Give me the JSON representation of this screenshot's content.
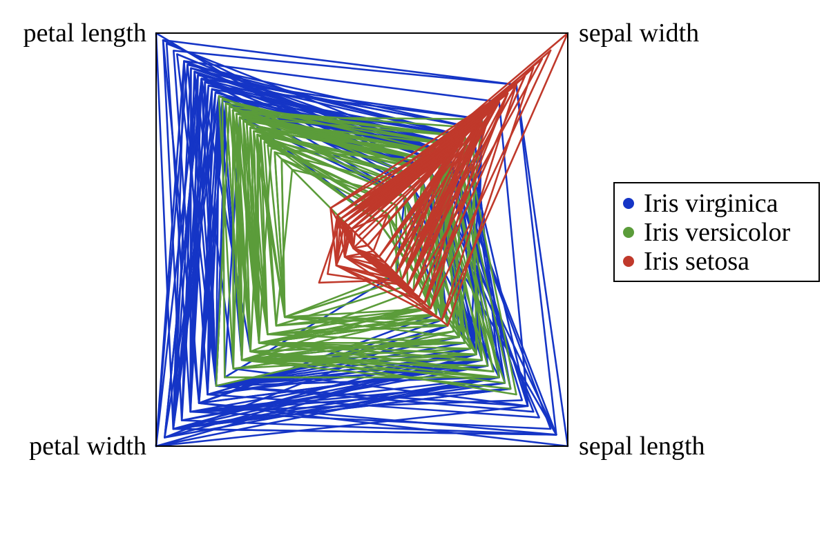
{
  "chart_data": {
    "type": "radviz",
    "anchors": [
      {
        "id": "petal_length",
        "label": "petal length",
        "position": "top-left"
      },
      {
        "id": "sepal_width",
        "label": "sepal width",
        "position": "top-right"
      },
      {
        "id": "sepal_length",
        "label": "sepal length",
        "position": "bottom-right"
      },
      {
        "id": "petal_width",
        "label": "petal width",
        "position": "bottom-left"
      }
    ],
    "legend_position": "right",
    "grid": false,
    "series": [
      {
        "name": "Iris virginica",
        "color": "#1535c6",
        "points": [
          [
            6.3,
            3.3,
            6.0,
            2.5
          ],
          [
            5.8,
            2.7,
            5.1,
            1.9
          ],
          [
            7.1,
            3.0,
            5.9,
            2.1
          ],
          [
            6.3,
            2.9,
            5.6,
            1.8
          ],
          [
            6.5,
            3.0,
            5.8,
            2.2
          ],
          [
            7.6,
            3.0,
            6.6,
            2.1
          ],
          [
            4.9,
            2.5,
            4.5,
            1.7
          ],
          [
            7.3,
            2.9,
            6.3,
            1.8
          ],
          [
            6.7,
            2.5,
            5.8,
            1.8
          ],
          [
            7.2,
            3.6,
            6.1,
            2.5
          ],
          [
            6.5,
            3.2,
            5.1,
            2.0
          ],
          [
            6.4,
            2.7,
            5.3,
            1.9
          ],
          [
            6.8,
            3.0,
            5.5,
            2.1
          ],
          [
            5.7,
            2.5,
            5.0,
            2.0
          ],
          [
            5.8,
            2.8,
            5.1,
            2.4
          ],
          [
            6.4,
            3.2,
            5.3,
            2.3
          ],
          [
            6.5,
            3.0,
            5.5,
            1.8
          ],
          [
            7.7,
            3.8,
            6.7,
            2.2
          ],
          [
            7.7,
            2.6,
            6.9,
            2.3
          ],
          [
            6.0,
            2.2,
            5.0,
            1.5
          ],
          [
            6.9,
            3.2,
            5.7,
            2.3
          ],
          [
            5.6,
            2.8,
            4.9,
            2.0
          ],
          [
            7.7,
            2.8,
            6.7,
            2.0
          ],
          [
            6.3,
            2.7,
            4.9,
            1.8
          ],
          [
            6.7,
            3.3,
            5.7,
            2.1
          ],
          [
            7.2,
            3.2,
            6.0,
            1.8
          ],
          [
            6.2,
            2.8,
            4.8,
            1.8
          ],
          [
            6.1,
            3.0,
            4.9,
            1.8
          ],
          [
            6.4,
            2.8,
            5.6,
            2.1
          ],
          [
            7.2,
            3.0,
            5.8,
            1.6
          ],
          [
            7.4,
            2.8,
            6.1,
            1.9
          ],
          [
            7.9,
            3.8,
            6.4,
            2.0
          ],
          [
            6.4,
            2.8,
            5.6,
            2.2
          ],
          [
            6.3,
            2.8,
            5.1,
            1.5
          ],
          [
            6.1,
            2.6,
            5.6,
            1.4
          ],
          [
            7.7,
            3.0,
            6.1,
            2.3
          ],
          [
            6.3,
            3.4,
            5.6,
            2.4
          ],
          [
            6.4,
            3.1,
            5.5,
            1.8
          ],
          [
            6.0,
            3.0,
            4.8,
            1.8
          ],
          [
            6.9,
            3.1,
            5.4,
            2.1
          ],
          [
            6.7,
            3.1,
            5.6,
            2.4
          ],
          [
            6.9,
            3.1,
            5.1,
            2.3
          ],
          [
            5.8,
            2.7,
            5.1,
            1.9
          ],
          [
            6.8,
            3.2,
            5.9,
            2.3
          ],
          [
            6.7,
            3.3,
            5.7,
            2.5
          ],
          [
            6.7,
            3.0,
            5.2,
            2.3
          ],
          [
            6.3,
            2.5,
            5.0,
            1.9
          ],
          [
            6.5,
            3.0,
            5.2,
            2.0
          ],
          [
            6.2,
            3.4,
            5.4,
            2.3
          ],
          [
            5.9,
            3.0,
            5.1,
            1.8
          ]
        ]
      },
      {
        "name": "Iris versicolor",
        "color": "#5b9c3a",
        "points": [
          [
            7.0,
            3.2,
            4.7,
            1.4
          ],
          [
            6.4,
            3.2,
            4.5,
            1.5
          ],
          [
            6.9,
            3.1,
            4.9,
            1.5
          ],
          [
            5.5,
            2.3,
            4.0,
            1.3
          ],
          [
            6.5,
            2.8,
            4.6,
            1.5
          ],
          [
            5.7,
            2.8,
            4.5,
            1.3
          ],
          [
            6.3,
            3.3,
            4.7,
            1.6
          ],
          [
            4.9,
            2.4,
            3.3,
            1.0
          ],
          [
            6.6,
            2.9,
            4.6,
            1.3
          ],
          [
            5.2,
            2.7,
            3.9,
            1.4
          ],
          [
            5.0,
            2.0,
            3.5,
            1.0
          ],
          [
            5.9,
            3.0,
            4.2,
            1.5
          ],
          [
            6.0,
            2.2,
            4.0,
            1.0
          ],
          [
            6.1,
            2.9,
            4.7,
            1.4
          ],
          [
            5.6,
            2.9,
            3.6,
            1.3
          ],
          [
            6.7,
            3.1,
            4.4,
            1.4
          ],
          [
            5.6,
            3.0,
            4.5,
            1.5
          ],
          [
            5.8,
            2.7,
            4.1,
            1.0
          ],
          [
            6.2,
            2.2,
            4.5,
            1.5
          ],
          [
            5.6,
            2.5,
            3.9,
            1.1
          ],
          [
            5.9,
            3.2,
            4.8,
            1.8
          ],
          [
            6.1,
            2.8,
            4.0,
            1.3
          ],
          [
            6.3,
            2.5,
            4.9,
            1.5
          ],
          [
            6.1,
            2.8,
            4.7,
            1.2
          ],
          [
            6.4,
            2.9,
            4.3,
            1.3
          ],
          [
            6.6,
            3.0,
            4.4,
            1.4
          ],
          [
            6.8,
            2.8,
            4.8,
            1.4
          ],
          [
            6.7,
            3.0,
            5.0,
            1.7
          ],
          [
            6.0,
            2.9,
            4.5,
            1.5
          ],
          [
            5.7,
            2.6,
            3.5,
            1.0
          ],
          [
            5.5,
            2.4,
            3.8,
            1.1
          ],
          [
            5.5,
            2.4,
            3.7,
            1.0
          ],
          [
            5.8,
            2.7,
            3.9,
            1.2
          ],
          [
            6.0,
            2.7,
            5.1,
            1.6
          ],
          [
            5.4,
            3.0,
            4.5,
            1.5
          ],
          [
            6.0,
            3.4,
            4.5,
            1.6
          ],
          [
            6.7,
            3.1,
            4.7,
            1.5
          ],
          [
            6.3,
            2.3,
            4.4,
            1.3
          ],
          [
            5.6,
            3.0,
            4.1,
            1.3
          ],
          [
            5.5,
            2.5,
            4.0,
            1.3
          ],
          [
            5.5,
            2.6,
            4.4,
            1.2
          ],
          [
            6.1,
            3.0,
            4.6,
            1.4
          ],
          [
            5.8,
            2.6,
            4.0,
            1.2
          ],
          [
            5.0,
            2.3,
            3.3,
            1.0
          ],
          [
            5.6,
            2.7,
            4.2,
            1.3
          ],
          [
            5.7,
            3.0,
            4.2,
            1.2
          ],
          [
            5.7,
            2.9,
            4.2,
            1.3
          ],
          [
            6.2,
            2.9,
            4.3,
            1.3
          ],
          [
            5.1,
            2.5,
            3.0,
            1.1
          ],
          [
            5.7,
            2.8,
            4.1,
            1.3
          ]
        ]
      },
      {
        "name": "Iris setosa",
        "color": "#c0392b",
        "points": [
          [
            5.1,
            3.5,
            1.4,
            0.2
          ],
          [
            4.9,
            3.0,
            1.4,
            0.2
          ],
          [
            4.7,
            3.2,
            1.3,
            0.2
          ],
          [
            4.6,
            3.1,
            1.5,
            0.2
          ],
          [
            5.0,
            3.6,
            1.4,
            0.2
          ],
          [
            5.4,
            3.9,
            1.7,
            0.4
          ],
          [
            4.6,
            3.4,
            1.4,
            0.3
          ],
          [
            5.0,
            3.4,
            1.5,
            0.2
          ],
          [
            4.4,
            2.9,
            1.4,
            0.2
          ],
          [
            4.9,
            3.1,
            1.5,
            0.1
          ],
          [
            5.4,
            3.7,
            1.5,
            0.2
          ],
          [
            4.8,
            3.4,
            1.6,
            0.2
          ],
          [
            4.8,
            3.0,
            1.4,
            0.1
          ],
          [
            4.3,
            3.0,
            1.1,
            0.1
          ],
          [
            5.8,
            4.0,
            1.2,
            0.2
          ],
          [
            5.7,
            4.4,
            1.5,
            0.4
          ],
          [
            5.4,
            3.9,
            1.3,
            0.4
          ],
          [
            5.1,
            3.5,
            1.4,
            0.3
          ],
          [
            5.7,
            3.8,
            1.7,
            0.3
          ],
          [
            5.1,
            3.8,
            1.5,
            0.3
          ],
          [
            5.4,
            3.4,
            1.7,
            0.2
          ],
          [
            5.1,
            3.7,
            1.5,
            0.4
          ],
          [
            4.6,
            3.6,
            1.0,
            0.2
          ],
          [
            5.1,
            3.3,
            1.7,
            0.5
          ],
          [
            4.8,
            3.4,
            1.9,
            0.2
          ],
          [
            5.0,
            3.0,
            1.6,
            0.2
          ],
          [
            5.0,
            3.4,
            1.6,
            0.4
          ],
          [
            5.2,
            3.5,
            1.5,
            0.2
          ],
          [
            5.2,
            3.4,
            1.4,
            0.2
          ],
          [
            4.7,
            3.2,
            1.6,
            0.2
          ],
          [
            4.8,
            3.1,
            1.6,
            0.2
          ],
          [
            5.4,
            3.4,
            1.5,
            0.4
          ],
          [
            5.2,
            4.1,
            1.5,
            0.1
          ],
          [
            5.5,
            4.2,
            1.4,
            0.2
          ],
          [
            4.9,
            3.1,
            1.5,
            0.2
          ],
          [
            5.0,
            3.2,
            1.2,
            0.2
          ],
          [
            5.5,
            3.5,
            1.3,
            0.2
          ],
          [
            4.9,
            3.6,
            1.4,
            0.1
          ],
          [
            4.4,
            3.0,
            1.3,
            0.2
          ],
          [
            5.1,
            3.4,
            1.5,
            0.2
          ],
          [
            5.0,
            3.5,
            1.3,
            0.3
          ],
          [
            4.5,
            2.3,
            1.3,
            0.3
          ],
          [
            4.4,
            3.2,
            1.3,
            0.2
          ],
          [
            5.0,
            3.5,
            1.6,
            0.6
          ],
          [
            5.1,
            3.8,
            1.9,
            0.4
          ],
          [
            4.8,
            3.0,
            1.4,
            0.3
          ],
          [
            5.1,
            3.8,
            1.6,
            0.2
          ],
          [
            4.6,
            3.2,
            1.4,
            0.2
          ],
          [
            5.3,
            3.7,
            1.5,
            0.2
          ],
          [
            5.0,
            3.3,
            1.4,
            0.2
          ]
        ]
      }
    ]
  }
}
